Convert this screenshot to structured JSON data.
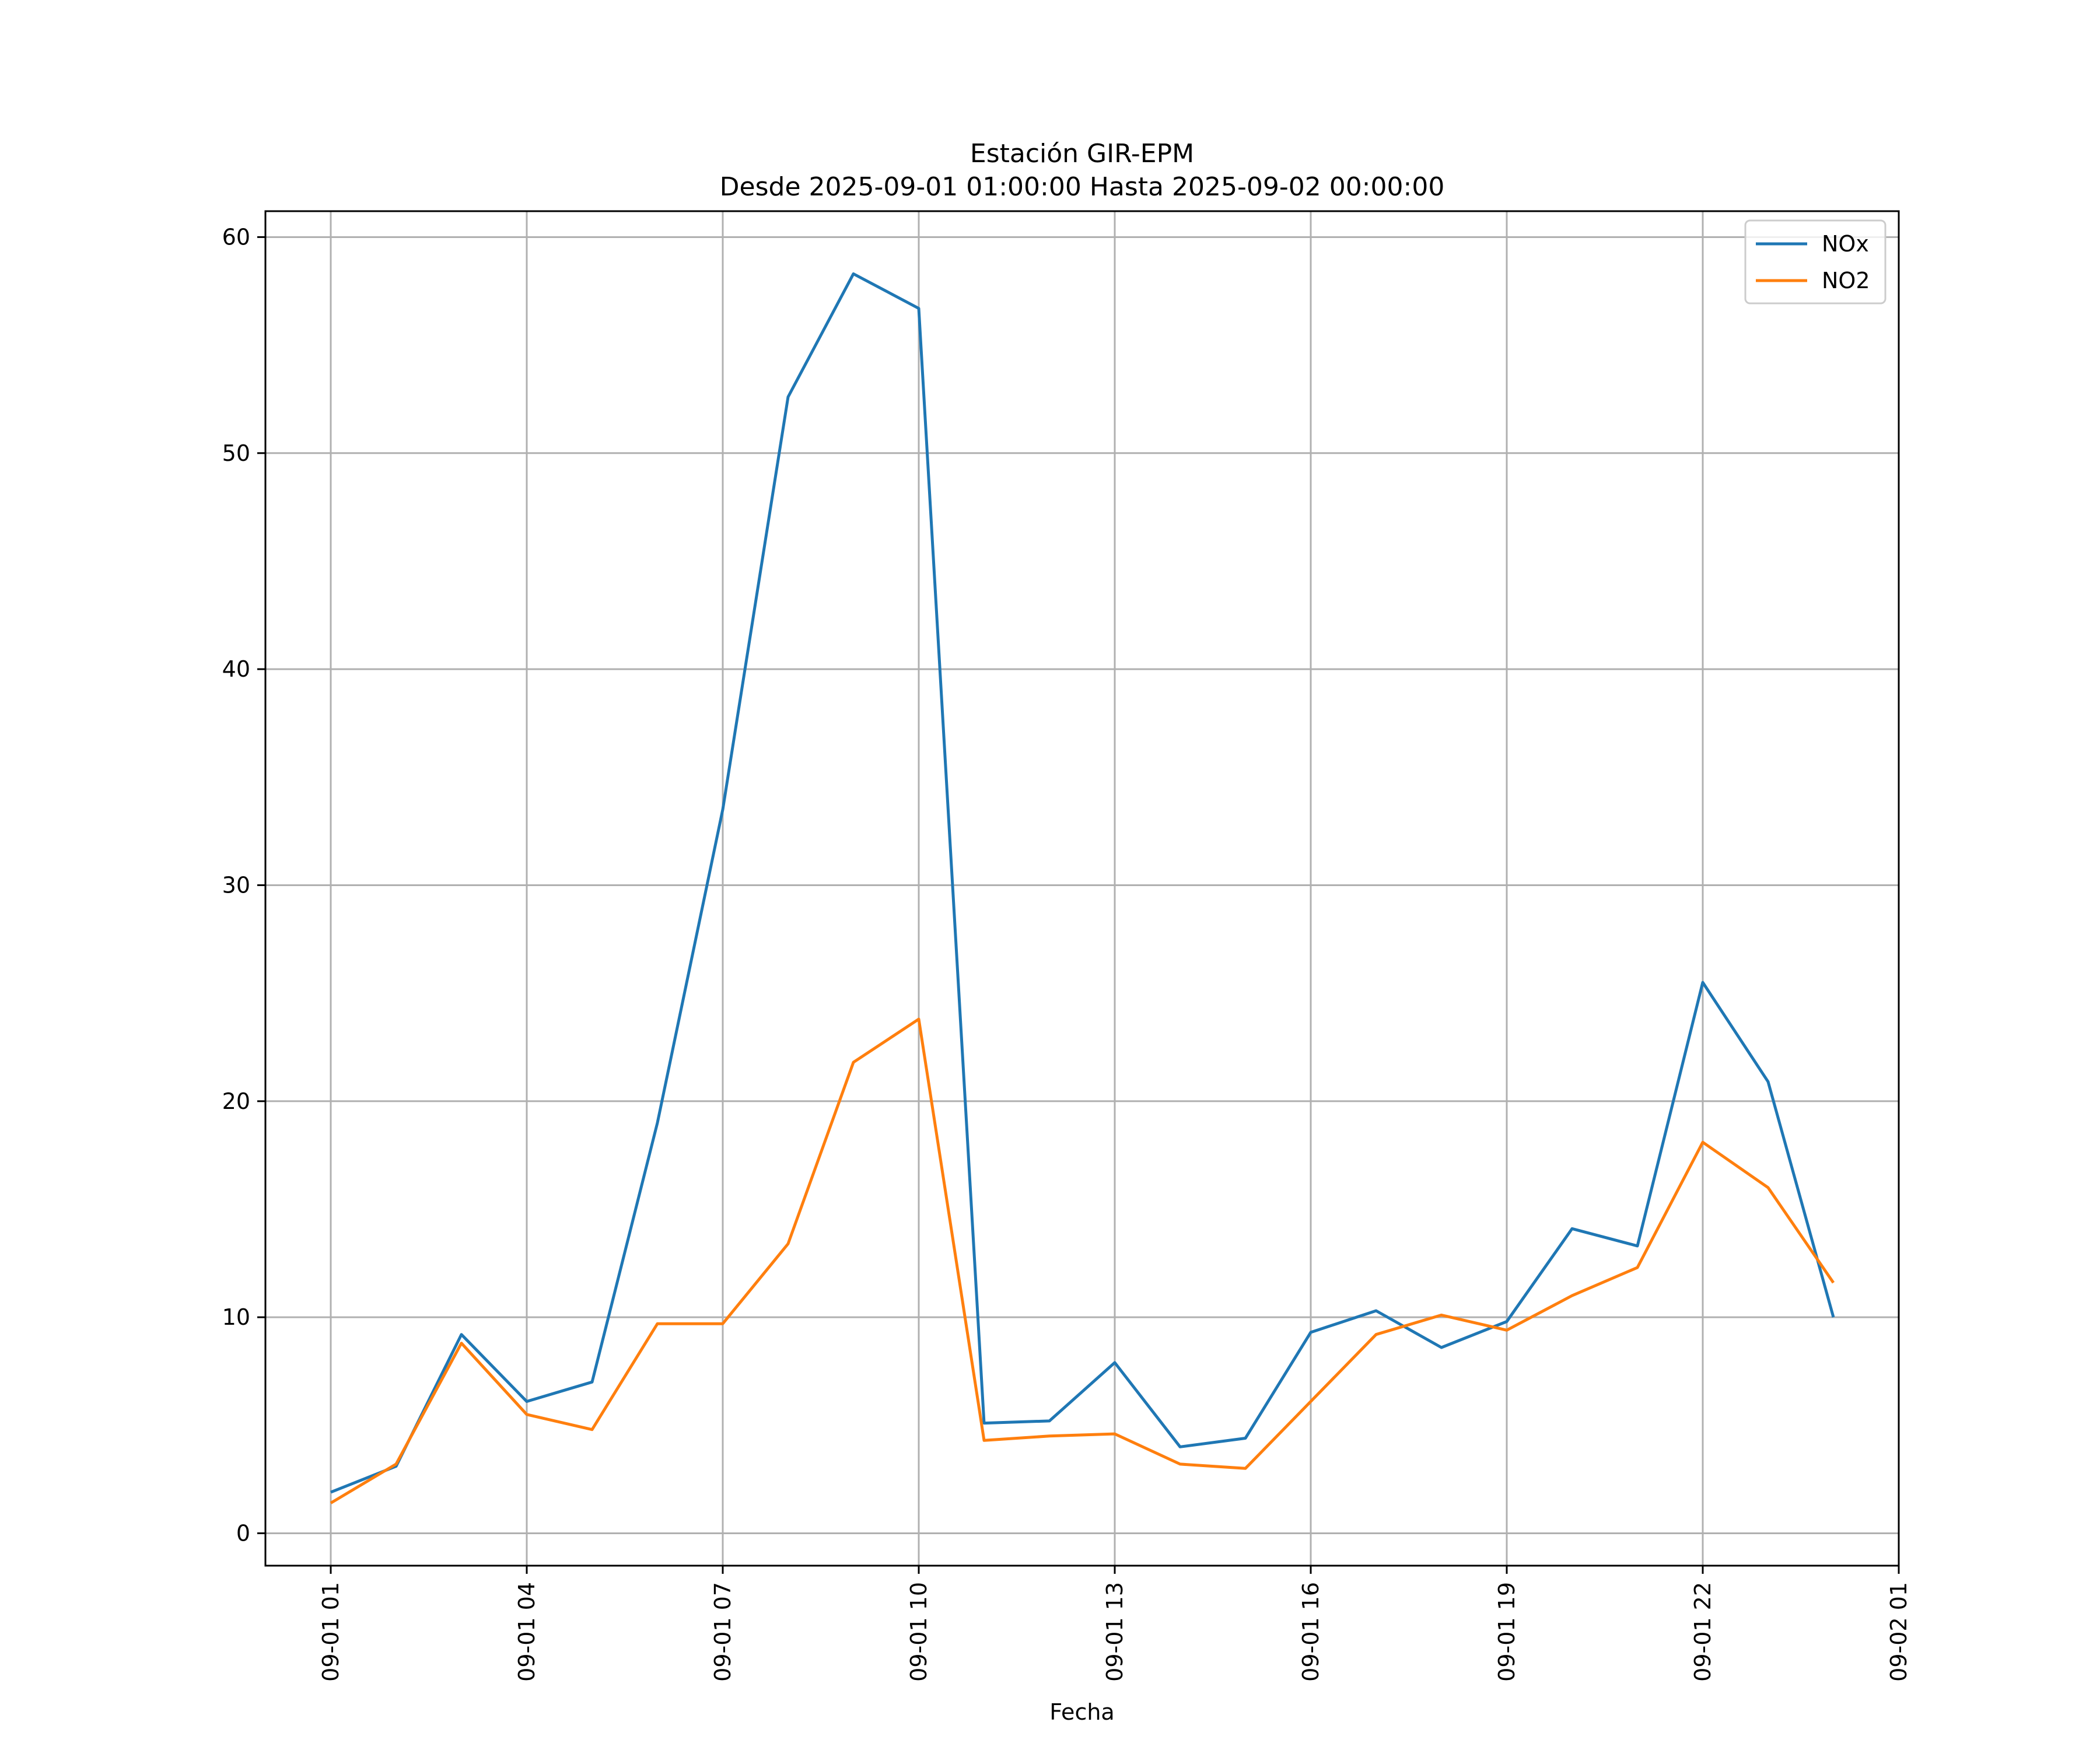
{
  "chart_data": {
    "type": "line",
    "title": "Estación GIR-EPM",
    "subtitle": "Desde 2025-09-01 01:00:00 Hasta 2025-09-02 00:00:00",
    "xlabel": "Fecha",
    "ylabel": "",
    "x": [
      "2025-09-01 01:00",
      "2025-09-01 02:00",
      "2025-09-01 03:00",
      "2025-09-01 04:00",
      "2025-09-01 05:00",
      "2025-09-01 06:00",
      "2025-09-01 07:00",
      "2025-09-01 08:00",
      "2025-09-01 09:00",
      "2025-09-01 10:00",
      "2025-09-01 11:00",
      "2025-09-01 12:00",
      "2025-09-01 13:00",
      "2025-09-01 14:00",
      "2025-09-01 15:00",
      "2025-09-01 16:00",
      "2025-09-01 17:00",
      "2025-09-01 18:00",
      "2025-09-01 19:00",
      "2025-09-01 20:00",
      "2025-09-01 21:00",
      "2025-09-01 22:00",
      "2025-09-01 23:00",
      "2025-09-02 00:00"
    ],
    "xlim": [
      "2025-09-01 00:00",
      "2025-09-02 01:00"
    ],
    "x_ticks": [
      {
        "label": "09-01 01",
        "value": "2025-09-01 01:00"
      },
      {
        "label": "09-01 04",
        "value": "2025-09-01 04:00"
      },
      {
        "label": "09-01 07",
        "value": "2025-09-01 07:00"
      },
      {
        "label": "09-01 10",
        "value": "2025-09-01 10:00"
      },
      {
        "label": "09-01 13",
        "value": "2025-09-01 13:00"
      },
      {
        "label": "09-01 16",
        "value": "2025-09-01 16:00"
      },
      {
        "label": "09-01 19",
        "value": "2025-09-01 19:00"
      },
      {
        "label": "09-01 22",
        "value": "2025-09-01 22:00"
      },
      {
        "label": "09-02 01",
        "value": "2025-09-02 01:00"
      }
    ],
    "ylim": [
      -1.5,
      61.2
    ],
    "y_ticks": [
      0,
      10,
      20,
      30,
      40,
      50,
      60
    ],
    "grid": true,
    "legend_position": "top-right",
    "series": [
      {
        "name": "NOx",
        "color": "#1f77b4",
        "values": [
          1.9,
          3.1,
          9.2,
          6.1,
          7.0,
          19.0,
          33.5,
          52.6,
          58.3,
          56.7,
          5.1,
          5.2,
          7.9,
          4.0,
          4.4,
          9.3,
          10.3,
          8.6,
          9.8,
          14.1,
          13.3,
          25.5,
          20.9,
          10.0
        ]
      },
      {
        "name": "NO2",
        "color": "#ff7f0e",
        "values": [
          1.4,
          3.2,
          8.8,
          5.5,
          4.8,
          9.7,
          9.7,
          13.4,
          21.8,
          23.8,
          4.3,
          4.5,
          4.6,
          3.2,
          3.0,
          6.1,
          9.2,
          10.1,
          9.4,
          11.0,
          12.3,
          18.1,
          16.0,
          11.6
        ]
      }
    ]
  }
}
